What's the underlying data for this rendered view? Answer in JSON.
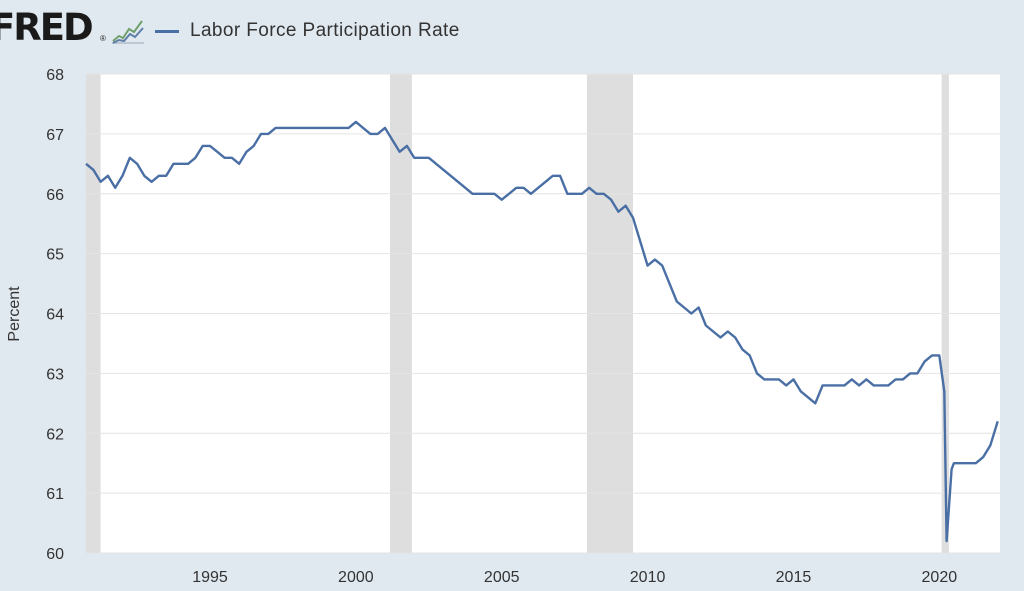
{
  "header": {
    "logo_text": "FRED",
    "logo_mark": "®",
    "logo_graph_icon": "line-chart-icon",
    "legend_label": "Labor Force Participation Rate"
  },
  "colors": {
    "series": "#4a6fa5",
    "plot_background": "#ffffff",
    "page_background": "#e1e9f0",
    "recession": "#dedede",
    "grid": "#e4e4e4"
  },
  "chart_data": {
    "type": "line",
    "ylabel": "Percent",
    "xlabel": "",
    "xlim": [
      1990.75,
      2022.08
    ],
    "ylim": [
      60,
      68
    ],
    "x_ticks": [
      1995,
      2000,
      2005,
      2010,
      2015,
      2020
    ],
    "x_tick_labels": [
      "1995",
      "2000",
      "2005",
      "2010",
      "2015",
      "2020"
    ],
    "y_ticks": [
      60,
      61,
      62,
      63,
      64,
      65,
      66,
      67,
      68
    ],
    "y_tick_labels": [
      "60",
      "61",
      "62",
      "63",
      "64",
      "65",
      "66",
      "67",
      "68"
    ],
    "grid": "horizontal",
    "recessions": [
      [
        1990.58,
        1991.25
      ],
      [
        2001.17,
        2001.92
      ],
      [
        2007.92,
        2009.5
      ],
      [
        2020.08,
        2020.33
      ]
    ],
    "series": [
      {
        "name": "Labor Force Participation Rate",
        "points": [
          [
            1990.75,
            66.5
          ],
          [
            1991.0,
            66.4
          ],
          [
            1991.25,
            66.2
          ],
          [
            1991.5,
            66.3
          ],
          [
            1991.75,
            66.1
          ],
          [
            1992.0,
            66.3
          ],
          [
            1992.25,
            66.6
          ],
          [
            1992.5,
            66.5
          ],
          [
            1992.75,
            66.3
          ],
          [
            1993.0,
            66.2
          ],
          [
            1993.25,
            66.3
          ],
          [
            1993.5,
            66.3
          ],
          [
            1993.75,
            66.5
          ],
          [
            1994.0,
            66.5
          ],
          [
            1994.25,
            66.5
          ],
          [
            1994.5,
            66.6
          ],
          [
            1994.75,
            66.8
          ],
          [
            1995.0,
            66.8
          ],
          [
            1995.25,
            66.7
          ],
          [
            1995.5,
            66.6
          ],
          [
            1995.75,
            66.6
          ],
          [
            1996.0,
            66.5
          ],
          [
            1996.25,
            66.7
          ],
          [
            1996.5,
            66.8
          ],
          [
            1996.75,
            67.0
          ],
          [
            1997.0,
            67.0
          ],
          [
            1997.25,
            67.1
          ],
          [
            1997.5,
            67.1
          ],
          [
            1997.75,
            67.1
          ],
          [
            1998.0,
            67.1
          ],
          [
            1998.25,
            67.1
          ],
          [
            1998.5,
            67.1
          ],
          [
            1998.75,
            67.1
          ],
          [
            1999.0,
            67.1
          ],
          [
            1999.25,
            67.1
          ],
          [
            1999.5,
            67.1
          ],
          [
            1999.75,
            67.1
          ],
          [
            2000.0,
            67.2
          ],
          [
            2000.25,
            67.1
          ],
          [
            2000.5,
            67.0
          ],
          [
            2000.75,
            67.0
          ],
          [
            2001.0,
            67.1
          ],
          [
            2001.25,
            66.9
          ],
          [
            2001.5,
            66.7
          ],
          [
            2001.75,
            66.8
          ],
          [
            2002.0,
            66.6
          ],
          [
            2002.25,
            66.6
          ],
          [
            2002.5,
            66.6
          ],
          [
            2002.75,
            66.5
          ],
          [
            2003.0,
            66.4
          ],
          [
            2003.25,
            66.3
          ],
          [
            2003.5,
            66.2
          ],
          [
            2003.75,
            66.1
          ],
          [
            2004.0,
            66.0
          ],
          [
            2004.25,
            66.0
          ],
          [
            2004.5,
            66.0
          ],
          [
            2004.75,
            66.0
          ],
          [
            2005.0,
            65.9
          ],
          [
            2005.25,
            66.0
          ],
          [
            2005.5,
            66.1
          ],
          [
            2005.75,
            66.1
          ],
          [
            2006.0,
            66.0
          ],
          [
            2006.25,
            66.1
          ],
          [
            2006.5,
            66.2
          ],
          [
            2006.75,
            66.3
          ],
          [
            2007.0,
            66.3
          ],
          [
            2007.25,
            66.0
          ],
          [
            2007.5,
            66.0
          ],
          [
            2007.75,
            66.0
          ],
          [
            2008.0,
            66.1
          ],
          [
            2008.25,
            66.0
          ],
          [
            2008.5,
            66.0
          ],
          [
            2008.75,
            65.9
          ],
          [
            2009.0,
            65.7
          ],
          [
            2009.25,
            65.8
          ],
          [
            2009.5,
            65.6
          ],
          [
            2009.75,
            65.2
          ],
          [
            2010.0,
            64.8
          ],
          [
            2010.25,
            64.9
          ],
          [
            2010.5,
            64.8
          ],
          [
            2010.75,
            64.5
          ],
          [
            2011.0,
            64.2
          ],
          [
            2011.25,
            64.1
          ],
          [
            2011.5,
            64.0
          ],
          [
            2011.75,
            64.1
          ],
          [
            2012.0,
            63.8
          ],
          [
            2012.25,
            63.7
          ],
          [
            2012.5,
            63.6
          ],
          [
            2012.75,
            63.7
          ],
          [
            2013.0,
            63.6
          ],
          [
            2013.25,
            63.4
          ],
          [
            2013.5,
            63.3
          ],
          [
            2013.75,
            63.0
          ],
          [
            2014.0,
            62.9
          ],
          [
            2014.25,
            62.9
          ],
          [
            2014.5,
            62.9
          ],
          [
            2014.75,
            62.8
          ],
          [
            2015.0,
            62.9
          ],
          [
            2015.25,
            62.7
          ],
          [
            2015.5,
            62.6
          ],
          [
            2015.75,
            62.5
          ],
          [
            2016.0,
            62.8
          ],
          [
            2016.25,
            62.8
          ],
          [
            2016.5,
            62.8
          ],
          [
            2016.75,
            62.8
          ],
          [
            2017.0,
            62.9
          ],
          [
            2017.25,
            62.8
          ],
          [
            2017.5,
            62.9
          ],
          [
            2017.75,
            62.8
          ],
          [
            2018.0,
            62.8
          ],
          [
            2018.25,
            62.8
          ],
          [
            2018.5,
            62.9
          ],
          [
            2018.75,
            62.9
          ],
          [
            2019.0,
            63.0
          ],
          [
            2019.25,
            63.0
          ],
          [
            2019.5,
            63.2
          ],
          [
            2019.75,
            63.3
          ],
          [
            2020.0,
            63.3
          ],
          [
            2020.17,
            62.7
          ],
          [
            2020.25,
            60.2
          ],
          [
            2020.42,
            61.4
          ],
          [
            2020.5,
            61.5
          ],
          [
            2020.75,
            61.5
          ],
          [
            2021.0,
            61.5
          ],
          [
            2021.25,
            61.5
          ],
          [
            2021.5,
            61.6
          ],
          [
            2021.75,
            61.8
          ],
          [
            2022.0,
            62.2
          ]
        ]
      }
    ]
  }
}
